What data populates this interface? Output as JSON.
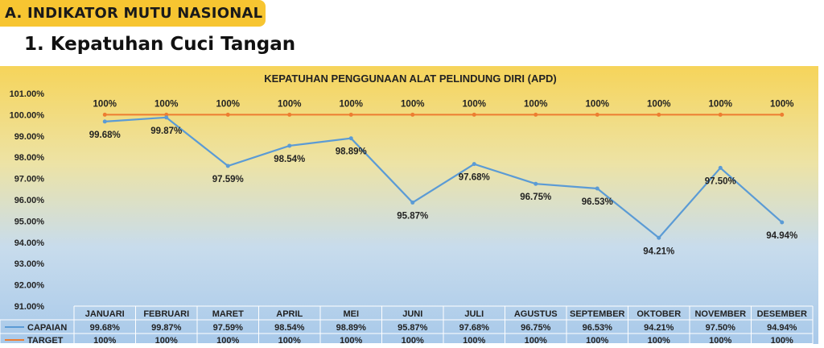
{
  "section_badge": "A. INDIKATOR MUTU NASIONAL",
  "subtitle": "1. Kepatuhan Cuci Tangan",
  "colors": {
    "capaian": "#5b9bd5",
    "target": "#ed7d31",
    "badge": "#f7c531"
  },
  "chart_data": {
    "type": "line",
    "title": "KEPATUHAN PENGGUNAAN ALAT PELINDUNG DIRI (APD)",
    "categories": [
      "JANUARI",
      "FEBRUARI",
      "MARET",
      "APRIL",
      "MEI",
      "JUNI",
      "JULI",
      "AGUSTUS",
      "SEPTEMBER",
      "OKTOBER",
      "NOVEMBER",
      "DESEMBER"
    ],
    "series": [
      {
        "name": "CAPAIAN",
        "values": [
          99.68,
          99.87,
          97.59,
          98.54,
          98.89,
          95.87,
          97.68,
          96.75,
          96.53,
          94.21,
          97.5,
          94.94
        ]
      },
      {
        "name": "TARGET",
        "values": [
          100,
          100,
          100,
          100,
          100,
          100,
          100,
          100,
          100,
          100,
          100,
          100
        ]
      }
    ],
    "yticks": [
      "91.00%",
      "92.00%",
      "93.00%",
      "94.00%",
      "95.00%",
      "96.00%",
      "97.00%",
      "98.00%",
      "99.00%",
      "100.00%",
      "101.00%"
    ],
    "ylim": [
      91,
      101
    ],
    "grid": false,
    "legend": "data-table-bottom"
  }
}
